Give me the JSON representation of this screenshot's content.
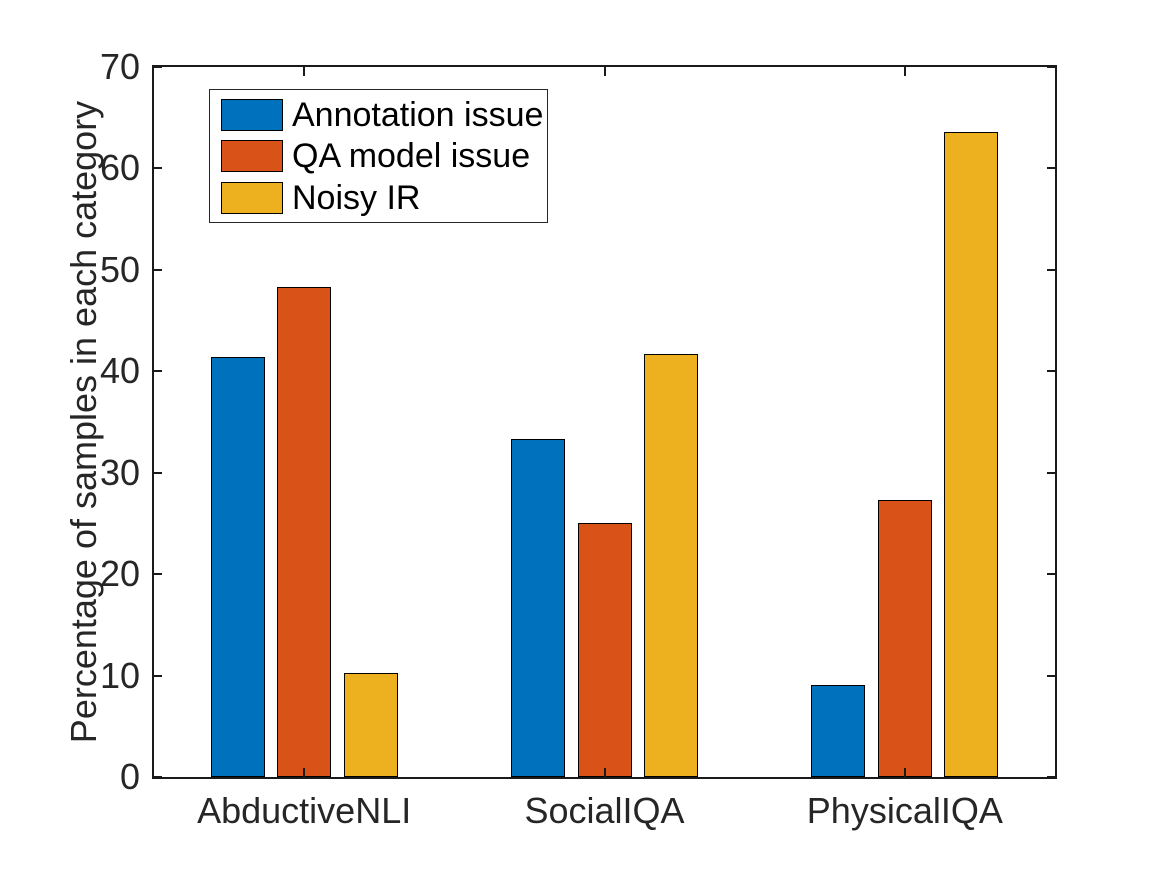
{
  "chart_data": {
    "type": "bar",
    "title": "",
    "xlabel": "",
    "ylabel": "Percentage of samples in each category",
    "categories": [
      "AbductiveNLI",
      "SocialIQA",
      "PhysicalIQA"
    ],
    "series": [
      {
        "name": "Annotation issue",
        "color": "#0072BD",
        "values": [
          41.4,
          33.3,
          9.1
        ]
      },
      {
        "name": "QA model issue",
        "color": "#D95319",
        "values": [
          48.3,
          25.0,
          27.3
        ]
      },
      {
        "name": "Noisy IR",
        "color": "#EDB120",
        "values": [
          10.3,
          41.7,
          63.6
        ]
      }
    ],
    "ylim": [
      0,
      70
    ],
    "yticks": [
      0,
      10,
      20,
      30,
      40,
      50,
      60,
      70
    ],
    "grid": false,
    "legend_position": "top-left-inside",
    "bar_edge_color": "#000000",
    "axis_color": "#1a1a1a",
    "text_color": "#262626"
  }
}
